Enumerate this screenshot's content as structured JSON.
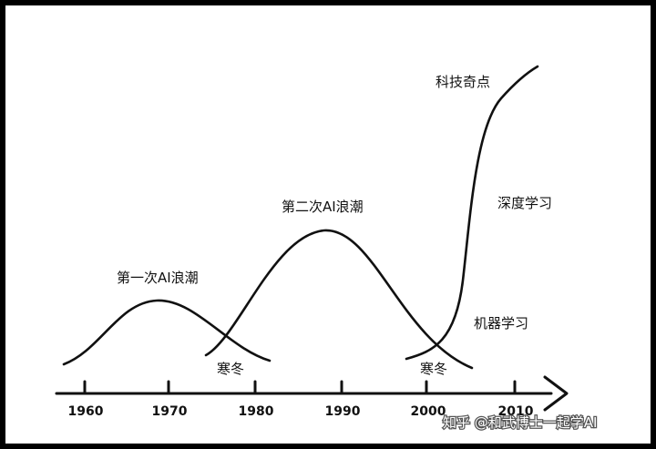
{
  "timeline": {
    "ticks": [
      "1960",
      "1970",
      "1980",
      "1990",
      "2000",
      "2010"
    ]
  },
  "waves": {
    "first_wave": "第一次AI浪潮",
    "second_wave": "第二次AI浪潮",
    "winter_1": "寒冬",
    "winter_2": "寒冬",
    "machine_learning": "机器学习",
    "deep_learning": "深度学习",
    "singularity": "科技奇点"
  },
  "watermark": {
    "text": "知乎 @和武博士一起学AI"
  },
  "colors": {
    "ink": "#111111",
    "background": "#ffffff",
    "border": "#000000"
  }
}
